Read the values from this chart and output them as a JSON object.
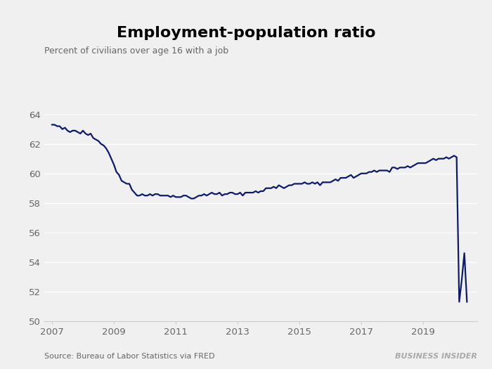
{
  "title": "Employment-population ratio",
  "subtitle": "Percent of civilians over age 16 with a job",
  "source": "Source: Bureau of Labor Statistics via FRED",
  "watermark": "BUSINESS INSIDER",
  "line_color": "#0d1a6e",
  "line_width": 1.6,
  "background_color": "#f0f0f0",
  "grid_color": "#ffffff",
  "spine_color": "#cccccc",
  "ylim": [
    50,
    65
  ],
  "yticks": [
    50,
    52,
    54,
    56,
    58,
    60,
    62,
    64
  ],
  "xlim": [
    2006.75,
    2020.75
  ],
  "xtick_positions": [
    2007,
    2009,
    2011,
    2013,
    2015,
    2017,
    2019
  ],
  "xtick_labels": [
    "2007",
    "2009",
    "2011",
    "2013",
    "2015",
    "2017",
    "2019"
  ],
  "data": {
    "dates": [
      2007.0,
      2007.083,
      2007.167,
      2007.25,
      2007.333,
      2007.417,
      2007.5,
      2007.583,
      2007.667,
      2007.75,
      2007.833,
      2007.917,
      2008.0,
      2008.083,
      2008.167,
      2008.25,
      2008.333,
      2008.417,
      2008.5,
      2008.583,
      2008.667,
      2008.75,
      2008.833,
      2008.917,
      2009.0,
      2009.083,
      2009.167,
      2009.25,
      2009.333,
      2009.417,
      2009.5,
      2009.583,
      2009.667,
      2009.75,
      2009.833,
      2009.917,
      2010.0,
      2010.083,
      2010.167,
      2010.25,
      2010.333,
      2010.417,
      2010.5,
      2010.583,
      2010.667,
      2010.75,
      2010.833,
      2010.917,
      2011.0,
      2011.083,
      2011.167,
      2011.25,
      2011.333,
      2011.417,
      2011.5,
      2011.583,
      2011.667,
      2011.75,
      2011.833,
      2011.917,
      2012.0,
      2012.083,
      2012.167,
      2012.25,
      2012.333,
      2012.417,
      2012.5,
      2012.583,
      2012.667,
      2012.75,
      2012.833,
      2012.917,
      2013.0,
      2013.083,
      2013.167,
      2013.25,
      2013.333,
      2013.417,
      2013.5,
      2013.583,
      2013.667,
      2013.75,
      2013.833,
      2013.917,
      2014.0,
      2014.083,
      2014.167,
      2014.25,
      2014.333,
      2014.417,
      2014.5,
      2014.583,
      2014.667,
      2014.75,
      2014.833,
      2014.917,
      2015.0,
      2015.083,
      2015.167,
      2015.25,
      2015.333,
      2015.417,
      2015.5,
      2015.583,
      2015.667,
      2015.75,
      2015.833,
      2015.917,
      2016.0,
      2016.083,
      2016.167,
      2016.25,
      2016.333,
      2016.417,
      2016.5,
      2016.583,
      2016.667,
      2016.75,
      2016.833,
      2016.917,
      2017.0,
      2017.083,
      2017.167,
      2017.25,
      2017.333,
      2017.417,
      2017.5,
      2017.583,
      2017.667,
      2017.75,
      2017.833,
      2017.917,
      2018.0,
      2018.083,
      2018.167,
      2018.25,
      2018.333,
      2018.417,
      2018.5,
      2018.583,
      2018.667,
      2018.75,
      2018.833,
      2018.917,
      2019.0,
      2019.083,
      2019.167,
      2019.25,
      2019.333,
      2019.417,
      2019.5,
      2019.583,
      2019.667,
      2019.75,
      2019.833,
      2019.917,
      2020.0,
      2020.083,
      2020.167,
      2020.25,
      2020.333,
      2020.417
    ],
    "values": [
      63.3,
      63.3,
      63.2,
      63.2,
      63.0,
      63.1,
      62.9,
      62.8,
      62.9,
      62.9,
      62.8,
      62.7,
      62.9,
      62.7,
      62.6,
      62.7,
      62.4,
      62.3,
      62.2,
      62.0,
      61.9,
      61.7,
      61.4,
      61.0,
      60.6,
      60.1,
      59.9,
      59.5,
      59.4,
      59.3,
      59.3,
      58.9,
      58.7,
      58.5,
      58.5,
      58.6,
      58.5,
      58.5,
      58.6,
      58.5,
      58.6,
      58.6,
      58.5,
      58.5,
      58.5,
      58.5,
      58.4,
      58.5,
      58.4,
      58.4,
      58.4,
      58.5,
      58.5,
      58.4,
      58.3,
      58.3,
      58.4,
      58.5,
      58.5,
      58.6,
      58.5,
      58.6,
      58.7,
      58.6,
      58.6,
      58.7,
      58.5,
      58.6,
      58.6,
      58.7,
      58.7,
      58.6,
      58.6,
      58.7,
      58.5,
      58.7,
      58.7,
      58.7,
      58.7,
      58.8,
      58.7,
      58.8,
      58.8,
      59.0,
      59.0,
      59.0,
      59.1,
      59.0,
      59.2,
      59.1,
      59.0,
      59.1,
      59.2,
      59.2,
      59.3,
      59.3,
      59.3,
      59.3,
      59.4,
      59.3,
      59.3,
      59.4,
      59.3,
      59.4,
      59.2,
      59.4,
      59.4,
      59.4,
      59.4,
      59.5,
      59.6,
      59.5,
      59.7,
      59.7,
      59.7,
      59.8,
      59.9,
      59.7,
      59.8,
      59.9,
      60.0,
      60.0,
      60.0,
      60.1,
      60.1,
      60.2,
      60.1,
      60.2,
      60.2,
      60.2,
      60.2,
      60.1,
      60.4,
      60.4,
      60.3,
      60.4,
      60.4,
      60.4,
      60.5,
      60.4,
      60.5,
      60.6,
      60.7,
      60.7,
      60.7,
      60.7,
      60.8,
      60.9,
      61.0,
      60.9,
      61.0,
      61.0,
      61.0,
      61.1,
      61.0,
      61.1,
      61.2,
      61.1,
      51.3,
      52.8,
      54.6,
      51.3
    ]
  }
}
